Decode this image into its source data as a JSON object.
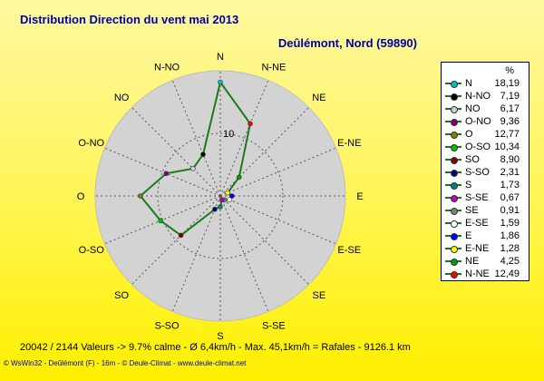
{
  "title": "Distribution Direction du vent   mai 2013",
  "location": "Deûlémont, Nord (59890)",
  "legend_unit": "%",
  "footer_stats": "20042 / 2144 Valeurs  -> 9.7% calme   -   Ø 6,4km/h   -   Max. 45,1km/h = Rafales   -   9126.1 km",
  "credits": "© WsWin32  -  Deûlémont (F) - 16m  -  © Deule-Climat - www.deule-climat.net",
  "colors": {
    "background": "#fff000",
    "title": "#0000a8",
    "disc": "#d3d3d3",
    "line": "#1a7a1a"
  },
  "chart_data": {
    "type": "radar",
    "title": "Distribution Direction du vent   mai 2013",
    "unit": "%",
    "r_tick_label": "10",
    "r_range": [
      0,
      20
    ],
    "directions": [
      "N",
      "N-NE",
      "NE",
      "E-NE",
      "E",
      "E-SE",
      "SE",
      "S-SE",
      "S",
      "S-SO",
      "SO",
      "O-SO",
      "O",
      "O-NO",
      "NO",
      "N-NO"
    ],
    "values": [
      18.19,
      12.49,
      4.25,
      1.28,
      1.86,
      1.59,
      0.91,
      0.67,
      1.73,
      2.31,
      8.9,
      10.34,
      12.77,
      9.36,
      6.17,
      7.19
    ],
    "legend": [
      {
        "dir": "N",
        "value": "18,19",
        "color": "#00c0c0"
      },
      {
        "dir": "N-NO",
        "value": "7,19",
        "color": "#000000"
      },
      {
        "dir": "NO",
        "value": "6,17",
        "color": "#d0d0d0"
      },
      {
        "dir": "O-NO",
        "value": "9,36",
        "color": "#800080"
      },
      {
        "dir": "O",
        "value": "12,77",
        "color": "#808000"
      },
      {
        "dir": "O-SO",
        "value": "10,34",
        "color": "#00c000"
      },
      {
        "dir": "SO",
        "value": "8,90",
        "color": "#800000"
      },
      {
        "dir": "S-SO",
        "value": "2,31",
        "color": "#000080"
      },
      {
        "dir": "S",
        "value": "1,73",
        "color": "#008080"
      },
      {
        "dir": "S-SE",
        "value": "0,67",
        "color": "#c000c0"
      },
      {
        "dir": "SE",
        "value": "0,91",
        "color": "#808080"
      },
      {
        "dir": "E-SE",
        "value": "1,59",
        "color": "#ffffff"
      },
      {
        "dir": "E",
        "value": "1,86",
        "color": "#0000ff"
      },
      {
        "dir": "E-NE",
        "value": "1,28",
        "color": "#ffff00"
      },
      {
        "dir": "NE",
        "value": "4,25",
        "color": "#00a000"
      },
      {
        "dir": "N-NE",
        "value": "12,49",
        "color": "#ff0000"
      }
    ]
  }
}
